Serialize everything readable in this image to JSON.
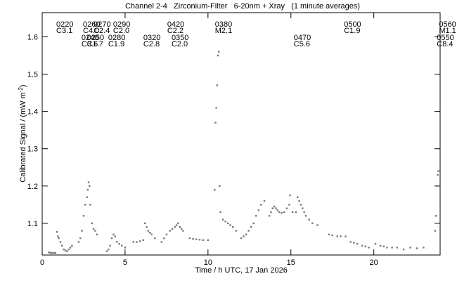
{
  "chart_data": {
    "type": "scatter",
    "title": "Channel 2-4   Zirconium-Filter   6-20nm + Xray   (1 minute averages)",
    "x_label": "Time / h UTC, 17 Jan 2026",
    "y_label": "Calibrated Signal / (mW m",
    "y_label_exp": "-2",
    "y_label_end": ")",
    "color": "#777777",
    "xlim": [
      0,
      24
    ],
    "xticks": [
      0,
      5,
      10,
      15,
      20
    ],
    "ylim": [
      1.015,
      1.665
    ],
    "yticks": [
      1.1,
      1.2,
      1.3,
      1.4,
      1.5,
      1.6
    ],
    "upper_flares": [
      {
        "x": 0.85,
        "number": "0220",
        "class": "C3.1"
      },
      {
        "x": 2.46,
        "number": "0260",
        "class": "C4.0"
      },
      {
        "x": 3.1,
        "number": "0270",
        "class": "C2.4"
      },
      {
        "x": 4.28,
        "number": "0290",
        "class": "C2.0"
      },
      {
        "x": 7.54,
        "number": "0420",
        "class": "C2.2"
      },
      {
        "x": 10.42,
        "number": "0380",
        "class": "M2.1"
      },
      {
        "x": 18.2,
        "number": "0500",
        "class": "C1.9"
      },
      {
        "x": 23.93,
        "number": "0560",
        "class": "M1.1"
      }
    ],
    "lower_flares": [
      {
        "x": 2.37,
        "number": "0240",
        "class": "C3.6"
      },
      {
        "x": 2.7,
        "number": "0250",
        "class": "C1.7"
      },
      {
        "x": 3.98,
        "number": "0280",
        "class": "C1.9"
      },
      {
        "x": 6.1,
        "number": "0320",
        "class": "C2.8"
      },
      {
        "x": 7.8,
        "number": "0350",
        "class": "C2.0"
      },
      {
        "x": 15.17,
        "number": "0470",
        "class": "C5.6"
      },
      {
        "x": 23.8,
        "number": "0550",
        "class": "C8.4"
      }
    ],
    "x": [
      0.4,
      0.5,
      0.6,
      0.7,
      0.8,
      0.9,
      0.95,
      1.0,
      1.1,
      1.2,
      1.3,
      1.4,
      1.5,
      1.6,
      1.7,
      1.8,
      2.2,
      2.3,
      2.4,
      2.5,
      2.6,
      2.7,
      2.75,
      2.8,
      2.85,
      2.9,
      3.0,
      3.1,
      3.2,
      3.3,
      3.9,
      4.0,
      4.1,
      4.2,
      4.3,
      4.4,
      4.5,
      4.65,
      4.8,
      5.0,
      5.5,
      5.7,
      5.9,
      6.1,
      6.2,
      6.3,
      6.4,
      6.5,
      6.6,
      6.8,
      7.2,
      7.35,
      7.5,
      7.7,
      7.85,
      8.0,
      8.1,
      8.2,
      8.3,
      8.4,
      8.5,
      8.9,
      9.1,
      9.3,
      9.5,
      9.7,
      10.0,
      10.4,
      10.45,
      10.5,
      10.55,
      10.6,
      10.65,
      10.7,
      10.75,
      10.9,
      11.05,
      11.2,
      11.35,
      11.5,
      11.7,
      12.0,
      12.15,
      12.3,
      12.45,
      12.6,
      12.75,
      12.9,
      13.05,
      13.2,
      13.4,
      13.7,
      13.8,
      13.9,
      14.0,
      14.1,
      14.2,
      14.3,
      14.45,
      14.6,
      14.75,
      14.9,
      14.95,
      15.1,
      15.3,
      15.4,
      15.5,
      15.6,
      15.7,
      15.8,
      15.9,
      16.1,
      16.3,
      16.6,
      17.3,
      17.5,
      17.8,
      18.0,
      18.3,
      18.6,
      18.8,
      19.0,
      19.3,
      19.5,
      19.7,
      20.1,
      20.4,
      20.6,
      20.8,
      21.1,
      21.4,
      21.8,
      22.2,
      22.6,
      23.0,
      23.7,
      23.75,
      23.8,
      23.85,
      23.9
    ],
    "values": [
      1.022,
      1.021,
      1.02,
      1.021,
      1.02,
      1.077,
      1.065,
      1.06,
      1.05,
      1.04,
      1.03,
      1.027,
      1.025,
      1.03,
      1.035,
      1.04,
      1.05,
      1.06,
      1.08,
      1.12,
      1.15,
      1.17,
      1.19,
      1.21,
      1.2,
      1.15,
      1.1,
      1.085,
      1.08,
      1.07,
      1.025,
      1.03,
      1.04,
      1.06,
      1.07,
      1.065,
      1.05,
      1.045,
      1.04,
      1.035,
      1.05,
      1.05,
      1.052,
      1.055,
      1.1,
      1.09,
      1.08,
      1.075,
      1.07,
      1.06,
      1.05,
      1.06,
      1.07,
      1.08,
      1.085,
      1.09,
      1.095,
      1.1,
      1.09,
      1.085,
      1.08,
      1.06,
      1.058,
      1.057,
      1.056,
      1.055,
      1.055,
      1.19,
      1.37,
      1.41,
      1.47,
      1.55,
      1.56,
      1.2,
      1.13,
      1.11,
      1.105,
      1.1,
      1.095,
      1.09,
      1.08,
      1.06,
      1.065,
      1.07,
      1.08,
      1.09,
      1.1,
      1.12,
      1.135,
      1.15,
      1.16,
      1.12,
      1.13,
      1.14,
      1.145,
      1.14,
      1.135,
      1.13,
      1.128,
      1.13,
      1.14,
      1.15,
      1.175,
      1.13,
      1.13,
      1.17,
      1.16,
      1.15,
      1.14,
      1.13,
      1.12,
      1.11,
      1.1,
      1.095,
      1.07,
      1.068,
      1.065,
      1.065,
      1.065,
      1.05,
      1.048,
      1.045,
      1.04,
      1.038,
      1.035,
      1.045,
      1.04,
      1.038,
      1.035,
      1.035,
      1.035,
      1.03,
      1.035,
      1.033,
      1.035,
      1.08,
      1.12,
      1.2,
      1.23,
      1.24
    ]
  }
}
